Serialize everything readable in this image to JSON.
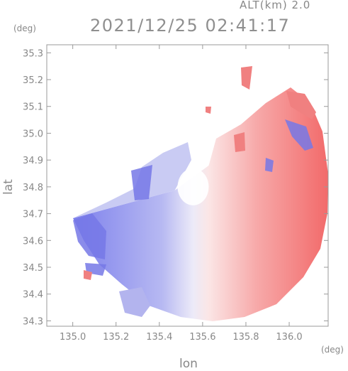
{
  "header": {
    "altitude_label": "ALT(km) 2.0",
    "timestamp": "2021/12/25 02:41:17"
  },
  "chart_data": {
    "type": "heatmap",
    "title": "2021/12/25 02:41:17",
    "xlabel": "lon",
    "ylabel": "lat",
    "x_unit": "(deg)",
    "y_unit": "(deg)",
    "xlim": [
      134.88,
      136.18
    ],
    "ylim": [
      34.28,
      35.33
    ],
    "x_ticks": [
      "135.0",
      "135.2",
      "135.4",
      "135.6",
      "135.8",
      "136.0"
    ],
    "y_ticks": [
      "34.3",
      "34.4",
      "34.5",
      "34.6",
      "34.7",
      "34.8",
      "34.9",
      "35.0",
      "35.1",
      "35.2",
      "35.3"
    ],
    "grid": false,
    "radar_center": [
      135.53,
      34.8
    ],
    "colormap": "blue-white-red",
    "colors": {
      "negative": "#6f73e6",
      "neutral": "#ffffff",
      "positive": "#f26a6a",
      "axis": "#9a9a9a",
      "text": "#888888"
    }
  }
}
